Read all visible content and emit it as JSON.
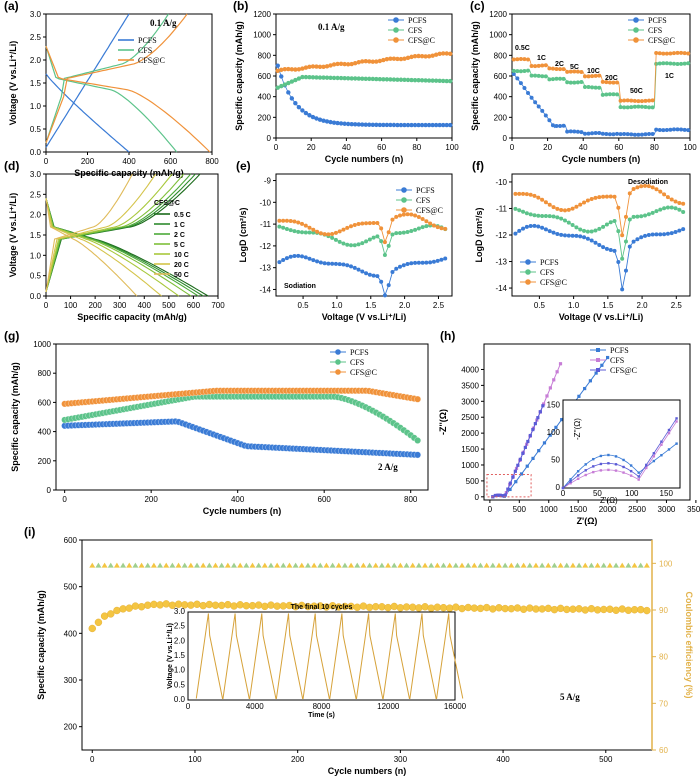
{
  "colors": {
    "pcfs": "#3a7bd5",
    "cfs": "#5cc38a",
    "cfsc": "#f0923a",
    "gold": "#e2b24a",
    "yellow": "#f4c542",
    "ceGreen": "#9fcf8e",
    "rate": [
      "#1b6b1b",
      "#2e8b2e",
      "#4caa3a",
      "#7fbf3a",
      "#a8c83c",
      "#d4c44a",
      "#e0bb5a"
    ]
  },
  "chart_data": [
    {
      "id": "a",
      "panel_label": "(a)",
      "type": "line",
      "xlabel": "Specific capacity  (mAh/g)",
      "ylabel": "Voltage (V vs.Li⁺/Li)",
      "xlim": [
        0,
        800
      ],
      "ylim": [
        0,
        3.0
      ],
      "xticks": [
        "0",
        "200",
        "400",
        "600",
        "800"
      ],
      "yticks": [
        "0.0",
        "0.5",
        "1.0",
        "1.5",
        "2.0",
        "2.5",
        "3.0"
      ],
      "annotation": "0.1 A/g",
      "series": [
        {
          "name": "PCFS",
          "discharge_end_capacity": 400,
          "charge_end_capacity": 400
        },
        {
          "name": "CFS",
          "discharge_end_capacity": 630,
          "charge_end_capacity": 590
        },
        {
          "name": "CFS@C",
          "discharge_end_capacity": 790,
          "charge_end_capacity": 680
        }
      ]
    },
    {
      "id": "b",
      "panel_label": "(b)",
      "type": "scatter",
      "xlabel": "Cycle numbers (n)",
      "ylabel": "Specific capacity (mAh/g)",
      "xlim": [
        0,
        100
      ],
      "ylim": [
        0,
        1200
      ],
      "xticks": [
        "0",
        "20",
        "40",
        "60",
        "80",
        "100"
      ],
      "yticks": [
        "0",
        "200",
        "400",
        "600",
        "800",
        "1000",
        "1200"
      ],
      "annotation": "0.1 A/g",
      "series": [
        {
          "name": "PCFS",
          "start": 700,
          "end": 125
        },
        {
          "name": "CFS",
          "start": 480,
          "end": 550
        },
        {
          "name": "CFS@C",
          "start": 650,
          "end": 820
        }
      ]
    },
    {
      "id": "c",
      "panel_label": "(c)",
      "type": "scatter",
      "xlabel": "Cycle numbers (n)",
      "ylabel": "Specific capacity (mAh/g)",
      "xlim": [
        0,
        100
      ],
      "ylim": [
        0,
        1200
      ],
      "xticks": [
        "0",
        "20",
        "40",
        "60",
        "80",
        "100"
      ],
      "yticks": [
        "0",
        "200",
        "400",
        "600",
        "800",
        "1000",
        "1200"
      ],
      "rate_labels": [
        "0.5C",
        "1C",
        "2C",
        "5C",
        "10C",
        "20C",
        "50C",
        "1C"
      ],
      "series": [
        {
          "name": "PCFS",
          "levels": [
            640,
            450,
            120,
            60,
            45,
            40,
            35,
            80
          ]
        },
        {
          "name": "CFS",
          "levels": [
            650,
            600,
            570,
            540,
            490,
            420,
            300,
            720
          ]
        },
        {
          "name": "CFS@C",
          "levels": [
            760,
            700,
            670,
            640,
            600,
            540,
            360,
            820
          ]
        }
      ]
    },
    {
      "id": "d",
      "panel_label": "(d)",
      "type": "line",
      "xlabel": "Specific capacity  (mAh/g)",
      "ylabel": "Voltage (V vs.Li⁺/Li)",
      "xlim": [
        0,
        700
      ],
      "ylim": [
        0,
        3.0
      ],
      "xticks": [
        "0",
        "100",
        "200",
        "300",
        "400",
        "500",
        "600",
        "700"
      ],
      "yticks": [
        "0.0",
        "0.5",
        "1.0",
        "1.5",
        "2.0",
        "2.5",
        "3.0"
      ],
      "legend_title": "CFS@C",
      "series": [
        {
          "name": "0.5 C",
          "capacity": 660
        },
        {
          "name": "1 C",
          "capacity": 640
        },
        {
          "name": "2 C",
          "capacity": 620
        },
        {
          "name": "5 C",
          "capacity": 590
        },
        {
          "name": "10 C",
          "capacity": 540
        },
        {
          "name": "20 C",
          "capacity": 470
        },
        {
          "name": "50 C",
          "capacity": 370
        }
      ]
    },
    {
      "id": "e",
      "panel_label": "(e)",
      "type": "line",
      "xlabel": "Voltage (V vs.Li⁺/Li)",
      "ylabel": "LogD (cm²/s)",
      "xlim": [
        0.1,
        2.7
      ],
      "ylim": [
        -14.3,
        -8.7
      ],
      "xticks": [
        "0.5",
        "1.0",
        "1.5",
        "2.0",
        "2.5"
      ],
      "yticks": [
        "-14",
        "-13",
        "-12",
        "-11",
        "-10",
        "-9"
      ],
      "annotation": "Sodiation",
      "series": [
        {
          "name": "PCFS",
          "level": -12.9
        },
        {
          "name": "CFS",
          "level": -11.5
        },
        {
          "name": "CFS@C",
          "level": -11.0
        }
      ]
    },
    {
      "id": "f",
      "panel_label": "(f)",
      "type": "line",
      "xlabel": "Voltage (V vs.Li⁺/Li)",
      "ylabel": "LogD (cm²/s)",
      "xlim": [
        0.1,
        2.7
      ],
      "ylim": [
        -14.3,
        -9.7
      ],
      "xticks": [
        "0.5",
        "1.0",
        "1.5",
        "2.0",
        "2.5"
      ],
      "yticks": [
        "-14",
        "-13",
        "-12",
        "-11",
        "-10"
      ],
      "annotation": "Desodiation",
      "series": [
        {
          "name": "PCFS",
          "level": -12.1
        },
        {
          "name": "CFS",
          "level": -11.4
        },
        {
          "name": "CFS@C",
          "level": -10.6
        }
      ]
    },
    {
      "id": "g",
      "panel_label": "(g)",
      "type": "scatter",
      "xlabel": "Cycle numbers (n)",
      "ylabel": "Specific capacity  (mAh/g)",
      "xlim": [
        -20,
        840
      ],
      "ylim": [
        0,
        1000
      ],
      "xticks": [
        "0",
        "200",
        "400",
        "600",
        "800"
      ],
      "yticks": [
        "0",
        "200",
        "400",
        "600",
        "800",
        "1000"
      ],
      "annotation": "2 A/g",
      "series": [
        {
          "name": "PCFS",
          "start": 440,
          "peak": 470,
          "end": 240
        },
        {
          "name": "CFS",
          "start": 480,
          "peak": 640,
          "end": 330
        },
        {
          "name": "CFS@C",
          "start": 590,
          "peak": 680,
          "end": 620
        }
      ]
    },
    {
      "id": "h",
      "panel_label": "(h)",
      "type": "scatter",
      "xlabel": "Z'(Ω)",
      "ylabel": "-Z''(Ω)",
      "xlim": [
        -100,
        3400
      ],
      "ylim": [
        -100,
        4800
      ],
      "xticks": [
        "0",
        "500",
        "1000",
        "1500",
        "2000",
        "2500",
        "3000",
        "3500"
      ],
      "yticks": [
        "0",
        "500",
        "1000",
        "1500",
        "2000",
        "2500",
        "3000",
        "3500",
        "4000"
      ],
      "inset": {
        "xticks": [
          "0",
          "50",
          "100",
          "150"
        ],
        "yticks": [
          "0",
          "50",
          "100",
          "150"
        ],
        "xlabel": "Z'(Ω)",
        "ylabel": "-Z''(Ω)"
      },
      "series": [
        {
          "name": "PCFS",
          "max_z": 1950
        },
        {
          "name": "CFS",
          "max_z": 1150
        },
        {
          "name": "CFS@C",
          "max_z": 850
        }
      ]
    },
    {
      "id": "i",
      "panel_label": "(i)",
      "type": "scatter",
      "xlabel": "Cycle numbers (n)",
      "ylabel": "Specific capacity  (mAh/g)",
      "y2label": "Coulombic efficiency (%)",
      "xlim": [
        -10,
        545
      ],
      "ylim": [
        150,
        600
      ],
      "y2lim": [
        60,
        105
      ],
      "xticks": [
        "0",
        "100",
        "200",
        "300",
        "400",
        "500"
      ],
      "yticks": [
        "200",
        "300",
        "400",
        "500",
        "600"
      ],
      "y2ticks": [
        "60",
        "70",
        "80",
        "90",
        "100"
      ],
      "annotation": "5 A/g",
      "capacity": {
        "start": 410,
        "plateau": 462,
        "end": 450
      },
      "coulombic_efficiency": 99.5,
      "inset": {
        "title": "The final 10 cycles",
        "xlabel": "Time (s)",
        "ylabel": "Voltage (V vs.Li⁺/Li)",
        "xticks": [
          "0",
          "4000",
          "8000",
          "12000",
          "16000"
        ],
        "yticks": [
          "0.0",
          "0.5",
          "1.0",
          "1.5",
          "2.0",
          "2.5",
          "3.0"
        ],
        "cycles": 10
      }
    }
  ]
}
